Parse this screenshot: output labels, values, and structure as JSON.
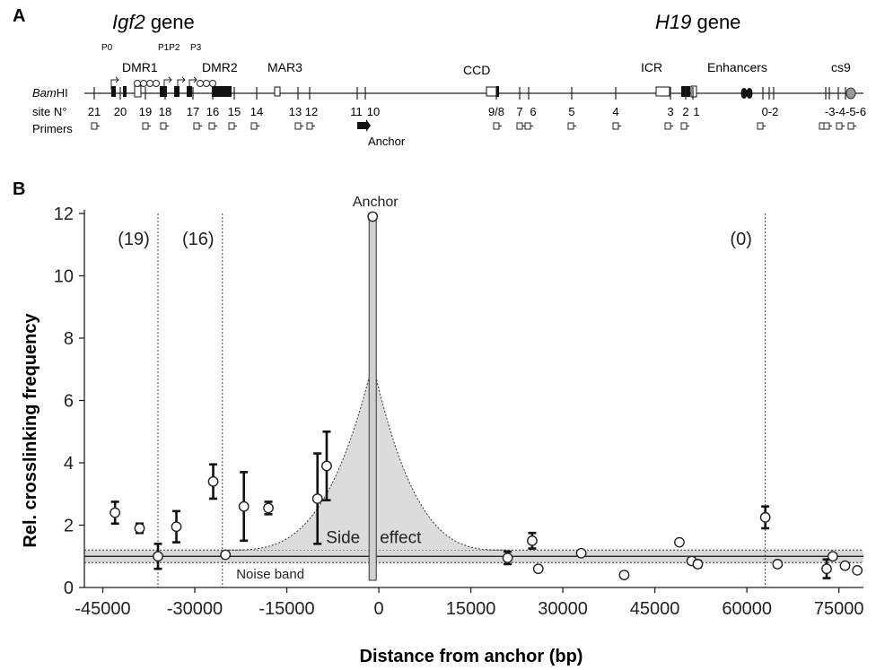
{
  "panel_a": {
    "panel_label": "A",
    "gene_left_name": "Igf2",
    "gene_left_suffix": " gene",
    "gene_right_name": "H19",
    "gene_right_suffix": " gene",
    "bamhi_italic": "Bam",
    "bamhi_rest": "HI",
    "site_label": "site N°",
    "primers_label": "Primers",
    "anchor_label": "Anchor",
    "features": {
      "p0": "P0",
      "p1p2": "P1P2",
      "p3": "P3",
      "dmr1": "DMR1",
      "dmr2": "DMR2",
      "mar3": "MAR3",
      "ccd": "CCD",
      "icr": "ICR",
      "enhancers": "Enhancers",
      "cs9": "cs9"
    },
    "site_numbers": [
      "21",
      "20",
      "19",
      "18",
      "17",
      "16",
      "15",
      "14",
      "13",
      "12",
      "11",
      "10",
      "9/8",
      "7",
      "6",
      "5",
      "4",
      "3",
      "2",
      "1",
      "0-2",
      "-3-4-5-6"
    ]
  },
  "chart_data": {
    "type": "scatter",
    "panel_label": "B",
    "ylabel": "Rel. crosslinking frequency",
    "xlabel": "Distance from anchor (bp)",
    "xlim": [
      -48000,
      79000
    ],
    "ylim": [
      0,
      12
    ],
    "x_ticks": [
      -45000,
      -30000,
      -15000,
      0,
      15000,
      30000,
      45000,
      60000,
      75000
    ],
    "x_tick_labels": [
      "-45000",
      "-30000",
      "-15000",
      "0",
      "15000",
      "30000",
      "45000",
      "60000",
      "75000"
    ],
    "y_ticks": [
      0,
      2,
      4,
      6,
      8,
      10,
      12
    ],
    "y_tick_labels": [
      "0",
      "2",
      "4",
      "6",
      "8",
      "10",
      "12"
    ],
    "anchor_x": -1000,
    "anchor_label": "Anchor",
    "points": [
      {
        "x": -43000,
        "y": 2.4,
        "err": 0.35
      },
      {
        "x": -39000,
        "y": 1.9,
        "err": 0.15
      },
      {
        "x": -36000,
        "y": 1.0,
        "err": 0.4
      },
      {
        "x": -33000,
        "y": 1.95,
        "err": 0.5
      },
      {
        "x": -27000,
        "y": 3.4,
        "err": 0.55
      },
      {
        "x": -25000,
        "y": 1.05,
        "err": 0
      },
      {
        "x": -22000,
        "y": 2.6,
        "err": 1.1
      },
      {
        "x": -18000,
        "y": 2.55,
        "err": 0.2
      },
      {
        "x": -10000,
        "y": 2.85,
        "err": 1.45
      },
      {
        "x": -8500,
        "y": 3.9,
        "err": 1.1
      },
      {
        "x": -1000,
        "y": 11.9,
        "err": 0
      },
      {
        "x": 21000,
        "y": 0.95,
        "err": 0.2
      },
      {
        "x": 25000,
        "y": 1.5,
        "err": 0.25
      },
      {
        "x": 26000,
        "y": 0.6,
        "err": 0
      },
      {
        "x": 33000,
        "y": 1.1,
        "err": 0
      },
      {
        "x": 40000,
        "y": 0.4,
        "err": 0
      },
      {
        "x": 49000,
        "y": 1.45,
        "err": 0
      },
      {
        "x": 51000,
        "y": 0.85,
        "err": 0
      },
      {
        "x": 52000,
        "y": 0.75,
        "err": 0.1
      },
      {
        "x": 63000,
        "y": 2.25,
        "err": 0.35
      },
      {
        "x": 65000,
        "y": 0.75,
        "err": 0
      },
      {
        "x": 73000,
        "y": 0.6,
        "err": 0.3
      },
      {
        "x": 74000,
        "y": 1.0,
        "err": 0
      },
      {
        "x": 76000,
        "y": 0.7,
        "err": 0
      },
      {
        "x": 78000,
        "y": 0.55,
        "err": 0
      }
    ],
    "vlines": [
      {
        "x": -36000,
        "label": "(19)"
      },
      {
        "x": -25500,
        "label": "(16)"
      },
      {
        "x": 63000,
        "label": "(0)"
      }
    ],
    "noise_band": {
      "center": 1.0,
      "low": 0.8,
      "high": 1.2,
      "label": "Noise band"
    },
    "side_effect": {
      "label_left": "Side",
      "label_right": "effect",
      "peak": 7.2,
      "x_start": -25000,
      "x_end": 21000
    },
    "colors": {
      "axis": "#222222",
      "band": "#d9d9d9",
      "side_fill": "#dcdcdc",
      "marker": "#ffffff"
    }
  }
}
